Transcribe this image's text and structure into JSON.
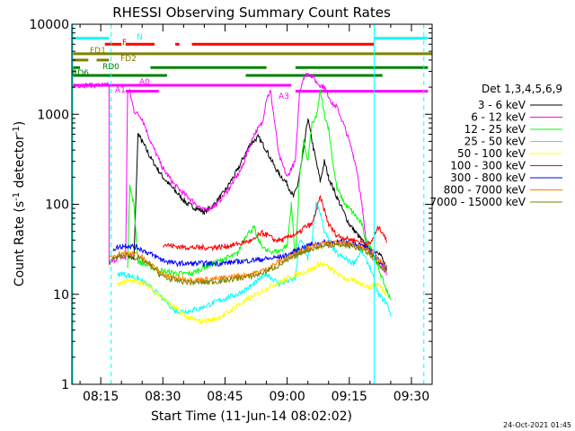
{
  "chart_data": {
    "type": "line",
    "title": "RHESSI Observing Summary Count Rates",
    "xlabel": "Start Time (11-Jun-14 08:02:02)",
    "ylabel_main": "Count Rate (s",
    "ylabel_sup1": "-1",
    "ylabel_mid": " detector",
    "ylabel_sup2": "-1",
    "ylabel_end": ")",
    "y_scale": "log",
    "ylim": [
      1,
      10000
    ],
    "xlim_minutes": [
      8.03,
      95
    ],
    "x_tick_labels": [
      "08:15",
      "08:30",
      "08:45",
      "09:00",
      "09:15",
      "09:30"
    ],
    "x_tick_minutes": [
      15,
      30,
      45,
      60,
      75,
      90
    ],
    "y_tick_labels": [
      "1",
      "10",
      "100",
      "1000",
      "10000"
    ],
    "y_tick_values": [
      1,
      10,
      100,
      1000,
      10000
    ],
    "timestamp": "24-Oct-2021 01:45",
    "legend_title": "Det 1,3,4,5,6,9",
    "legend_position": "right",
    "series": [
      {
        "name": "3 - 6 keV",
        "color": "#000000",
        "points": [
          [
            21.5,
            28
          ],
          [
            23,
            24
          ],
          [
            24,
            600
          ],
          [
            25,
            500
          ],
          [
            27,
            330
          ],
          [
            30,
            200
          ],
          [
            33,
            140
          ],
          [
            36,
            100
          ],
          [
            40,
            82
          ],
          [
            42,
            95
          ],
          [
            45,
            140
          ],
          [
            48,
            240
          ],
          [
            51,
            460
          ],
          [
            53,
            560
          ],
          [
            55,
            400
          ],
          [
            57,
            260
          ],
          [
            58,
            220
          ],
          [
            60,
            170
          ],
          [
            61.5,
            120
          ],
          [
            62.5,
            160
          ],
          [
            64,
            400
          ],
          [
            65,
            900
          ],
          [
            66,
            500
          ],
          [
            68,
            180
          ],
          [
            69,
            300
          ],
          [
            70,
            200
          ],
          [
            72,
            120
          ],
          [
            75,
            60
          ],
          [
            78,
            40
          ],
          [
            80,
            30
          ],
          [
            82,
            30
          ],
          [
            83,
            25
          ],
          [
            84,
            18
          ]
        ]
      },
      {
        "name": "6 - 12 keV",
        "color": "#ff00ff",
        "points": [
          [
            8,
            2100
          ],
          [
            17,
            2100
          ],
          [
            17,
            22
          ],
          [
            19.5,
            26
          ],
          [
            21,
            25
          ],
          [
            21.5,
            1800
          ],
          [
            22,
            1800
          ],
          [
            23,
            1100
          ],
          [
            25,
            900
          ],
          [
            27,
            500
          ],
          [
            30,
            250
          ],
          [
            33,
            160
          ],
          [
            36,
            120
          ],
          [
            40,
            85
          ],
          [
            43,
            100
          ],
          [
            46,
            150
          ],
          [
            49,
            250
          ],
          [
            52,
            600
          ],
          [
            54,
            800
          ],
          [
            55,
            1500
          ],
          [
            56,
            1800
          ],
          [
            57,
            800
          ],
          [
            58,
            350
          ],
          [
            60,
            200
          ],
          [
            61,
            250
          ],
          [
            62,
            300
          ],
          [
            63,
            1800
          ],
          [
            64,
            2600
          ],
          [
            65,
            2800
          ],
          [
            66,
            2700
          ],
          [
            67,
            2300
          ],
          [
            68,
            2100
          ],
          [
            69,
            2000
          ],
          [
            70,
            1600
          ],
          [
            71,
            1300
          ],
          [
            72,
            1200
          ],
          [
            74,
            700
          ],
          [
            76,
            350
          ],
          [
            77,
            220
          ],
          [
            78,
            100
          ],
          [
            79,
            40
          ],
          [
            80,
            30
          ],
          [
            81,
            29
          ],
          [
            82,
            25
          ],
          [
            84,
            17
          ]
        ]
      },
      {
        "name": "12 - 25 keV",
        "color": "#00ff00",
        "points": [
          [
            21.5,
            21
          ],
          [
            22,
            160
          ],
          [
            23,
            100
          ],
          [
            24,
            23
          ],
          [
            30,
            18
          ],
          [
            34,
            17
          ],
          [
            37,
            17
          ],
          [
            40,
            20
          ],
          [
            44,
            24
          ],
          [
            48,
            28
          ],
          [
            50,
            45
          ],
          [
            52,
            55
          ],
          [
            53,
            40
          ],
          [
            55,
            30
          ],
          [
            58,
            30
          ],
          [
            60,
            35
          ],
          [
            61,
            100
          ],
          [
            62,
            25
          ],
          [
            63,
            200
          ],
          [
            64,
            500
          ],
          [
            65,
            300
          ],
          [
            66,
            800
          ],
          [
            67,
            900
          ],
          [
            68,
            1800
          ],
          [
            69,
            1000
          ],
          [
            70,
            700
          ],
          [
            71,
            300
          ],
          [
            72,
            150
          ],
          [
            74,
            100
          ],
          [
            76,
            80
          ],
          [
            78,
            60
          ],
          [
            79,
            40
          ],
          [
            80,
            35
          ],
          [
            82,
            20
          ],
          [
            84,
            11
          ],
          [
            85,
            9
          ]
        ]
      },
      {
        "name": "25 - 50 keV",
        "color": "#00ffff",
        "points": [
          [
            19,
            16
          ],
          [
            20,
            17
          ],
          [
            22,
            16
          ],
          [
            24,
            15
          ],
          [
            27,
            12
          ],
          [
            30,
            9
          ],
          [
            33,
            6.5
          ],
          [
            36,
            6.5
          ],
          [
            39,
            7
          ],
          [
            42,
            8
          ],
          [
            45,
            9
          ],
          [
            48,
            10
          ],
          [
            52,
            13
          ],
          [
            55,
            17
          ],
          [
            58,
            13
          ],
          [
            60,
            14
          ],
          [
            62,
            15
          ],
          [
            63,
            40
          ],
          [
            64,
            35
          ],
          [
            65,
            25
          ],
          [
            66,
            40
          ],
          [
            67,
            100
          ],
          [
            68,
            80
          ],
          [
            69,
            50
          ],
          [
            70,
            40
          ],
          [
            72,
            28
          ],
          [
            74,
            25
          ],
          [
            76,
            22
          ],
          [
            78,
            30
          ],
          [
            80,
            20
          ],
          [
            82,
            10
          ],
          [
            84,
            8
          ],
          [
            85,
            6
          ]
        ]
      },
      {
        "name": "50 - 100 keV",
        "color": "#ffff00",
        "points": [
          [
            19,
            13
          ],
          [
            21,
            14
          ],
          [
            23,
            14
          ],
          [
            25,
            13.5
          ],
          [
            27,
            12
          ],
          [
            30,
            9
          ],
          [
            33,
            7
          ],
          [
            36,
            5.5
          ],
          [
            39,
            5
          ],
          [
            42,
            5.2
          ],
          [
            45,
            6
          ],
          [
            48,
            7.5
          ],
          [
            51,
            9
          ],
          [
            54,
            11
          ],
          [
            57,
            13
          ],
          [
            60,
            15
          ],
          [
            63,
            17
          ],
          [
            66,
            19
          ],
          [
            68,
            22
          ],
          [
            70,
            20
          ],
          [
            72,
            17
          ],
          [
            74,
            15
          ],
          [
            76,
            14
          ],
          [
            78,
            13
          ],
          [
            80,
            12
          ],
          [
            82,
            13
          ],
          [
            84,
            10
          ]
        ]
      },
      {
        "name": "100 - 300 keV",
        "color": "#ff0000",
        "points": [
          [
            30,
            36
          ],
          [
            33,
            34
          ],
          [
            36,
            33
          ],
          [
            39,
            33
          ],
          [
            42,
            33
          ],
          [
            45,
            34
          ],
          [
            48,
            36
          ],
          [
            50,
            38
          ],
          [
            52,
            40
          ],
          [
            53,
            45
          ],
          [
            54,
            48
          ],
          [
            55,
            46
          ],
          [
            57,
            40
          ],
          [
            59,
            40
          ],
          [
            61,
            45
          ],
          [
            63,
            48
          ],
          [
            64,
            55
          ],
          [
            66,
            60
          ],
          [
            68,
            120
          ],
          [
            70,
            60
          ],
          [
            72,
            45
          ],
          [
            74,
            42
          ],
          [
            76,
            40
          ],
          [
            78,
            38
          ],
          [
            80,
            36
          ],
          [
            82,
            55
          ],
          [
            83,
            50
          ],
          [
            84,
            38
          ]
        ]
      },
      {
        "name": "300 - 800 keV",
        "color": "#0000ff",
        "points": [
          [
            18,
            32
          ],
          [
            21,
            35
          ],
          [
            24,
            33
          ],
          [
            27,
            28
          ],
          [
            30,
            24
          ],
          [
            33,
            22
          ],
          [
            36,
            22
          ],
          [
            40,
            22
          ],
          [
            44,
            22
          ],
          [
            48,
            23
          ],
          [
            52,
            24
          ],
          [
            56,
            25
          ],
          [
            60,
            27
          ],
          [
            63,
            32
          ],
          [
            66,
            36
          ],
          [
            70,
            38
          ],
          [
            73,
            38
          ],
          [
            76,
            37
          ],
          [
            79,
            33
          ],
          [
            81,
            27
          ],
          [
            82,
            24
          ],
          [
            84,
            20
          ]
        ]
      },
      {
        "name": "800 - 7000 keV",
        "color": "#ff8000",
        "points": [
          [
            17,
            25
          ],
          [
            19,
            28
          ],
          [
            21,
            29
          ],
          [
            23,
            28
          ],
          [
            25,
            26
          ],
          [
            27,
            22
          ],
          [
            29,
            18
          ],
          [
            31,
            16
          ],
          [
            34,
            15
          ],
          [
            37,
            14.5
          ],
          [
            40,
            14.5
          ],
          [
            44,
            15
          ],
          [
            48,
            16
          ],
          [
            52,
            17
          ],
          [
            55,
            19
          ],
          [
            58,
            23
          ],
          [
            61,
            27
          ],
          [
            64,
            32
          ],
          [
            67,
            35
          ],
          [
            70,
            37
          ],
          [
            73,
            37
          ],
          [
            76,
            36
          ],
          [
            79,
            32
          ],
          [
            81,
            27
          ],
          [
            82,
            24
          ],
          [
            84,
            20
          ]
        ]
      },
      {
        "name": "7000 - 15000 keV",
        "color": "#808000",
        "points": [
          [
            17,
            23
          ],
          [
            19,
            26
          ],
          [
            21,
            27
          ],
          [
            23,
            26
          ],
          [
            25,
            24
          ],
          [
            27,
            21
          ],
          [
            29,
            17
          ],
          [
            31,
            15
          ],
          [
            34,
            14
          ],
          [
            37,
            13.5
          ],
          [
            40,
            13.5
          ],
          [
            44,
            14
          ],
          [
            48,
            15
          ],
          [
            52,
            16
          ],
          [
            55,
            18
          ],
          [
            58,
            21
          ],
          [
            61,
            25
          ],
          [
            64,
            30
          ],
          [
            67,
            33
          ],
          [
            70,
            35
          ],
          [
            73,
            35
          ],
          [
            76,
            34
          ],
          [
            79,
            30
          ],
          [
            81,
            25
          ],
          [
            82,
            22
          ],
          [
            84,
            18
          ]
        ]
      }
    ],
    "annotations": {
      "bars": [
        {
          "label": "N",
          "color": "#00ffff",
          "y": 7000,
          "segments": [
            [
              8,
              17
            ],
            [
              81,
              94
            ]
          ]
        },
        {
          "label": "F",
          "color": "#ff0000",
          "y": 6000,
          "segments": [
            [
              16,
              20
            ],
            [
              21,
              28
            ],
            [
              33,
              34
            ],
            [
              37,
              81
            ]
          ]
        },
        {
          "label": "FD1",
          "color": "#808000",
          "y": 4700,
          "segments": [
            [
              8,
              95
            ]
          ]
        },
        {
          "label": "FD2",
          "color": "#808000",
          "y": 4000,
          "segments": [
            [
              8,
              12
            ],
            [
              14,
              17
            ]
          ]
        },
        {
          "label": "RD0",
          "color": "#008000",
          "y": 3300,
          "segments": [
            [
              8,
              10
            ],
            [
              27,
              55
            ],
            [
              62,
              94
            ]
          ]
        },
        {
          "label": "RD6",
          "color": "#008000",
          "y": 2700,
          "segments": [
            [
              8,
              31
            ],
            [
              50,
              83
            ]
          ]
        },
        {
          "label": "A1",
          "color": "#ff00ff",
          "y": 1800,
          "segments": [
            [
              21,
              29
            ],
            [
              62,
              94
            ]
          ]
        },
        {
          "label": "A0",
          "color": "#ff00ff",
          "y": 2100,
          "segments": [
            [
              8,
              61
            ]
          ]
        },
        {
          "label": "A3",
          "color": "#ff00ff",
          "y": 1400,
          "segments": []
        }
      ],
      "vlines_solid_cyan": [
        81
      ],
      "vlines_dashed_cyan": [
        17.5,
        93
      ]
    }
  }
}
